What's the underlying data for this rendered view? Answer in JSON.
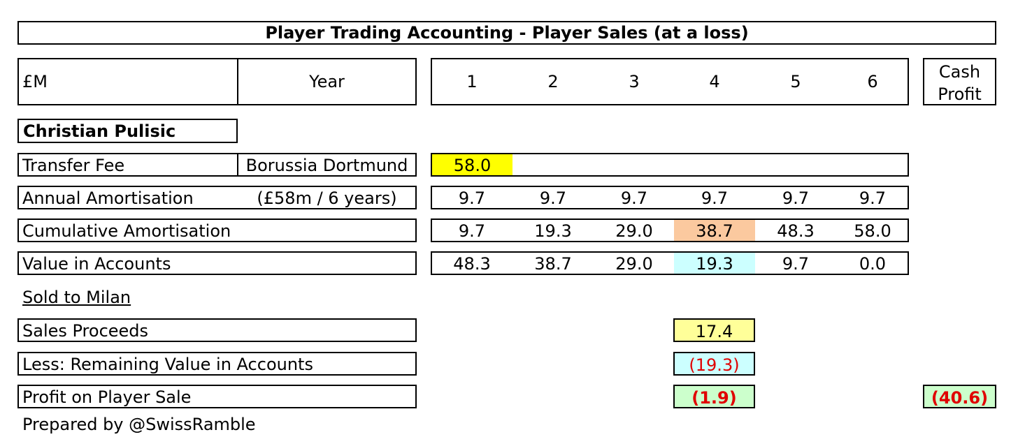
{
  "title": "Player Trading Accounting - Player Sales (at a loss)",
  "header": {
    "unit": "£M",
    "year_label": "Year",
    "years": [
      "1",
      "2",
      "3",
      "4",
      "5",
      "6"
    ],
    "cash_profit_line1": "Cash",
    "cash_profit_line2": "Profit"
  },
  "player": "Christian Pulisic",
  "rows": {
    "transfer_fee": {
      "label": "Transfer Fee",
      "note": "Borussia Dortmund",
      "value": "58.0"
    },
    "annual_amortisation": {
      "label": "Annual Amortisation",
      "note": "(£58m / 6 years)",
      "values": [
        "9.7",
        "9.7",
        "9.7",
        "9.7",
        "9.7",
        "9.7"
      ]
    },
    "cumulative_amortisation": {
      "label": "Cumulative Amortisation",
      "values": [
        "9.7",
        "19.3",
        "29.0",
        "38.7",
        "48.3",
        "58.0"
      ]
    },
    "value_in_accounts": {
      "label": "Value in Accounts",
      "values": [
        "48.3",
        "38.7",
        "29.0",
        "19.3",
        "9.7",
        "0.0"
      ]
    }
  },
  "sale": {
    "heading": "Sold to Milan",
    "sales_proceeds": {
      "label": "Sales Proceeds",
      "value": "17.4"
    },
    "remaining_value": {
      "label": "Less: Remaining Value in Accounts",
      "value": "(19.3)"
    },
    "profit": {
      "label": "Profit on Player Sale",
      "value": "(1.9)",
      "cash_profit": "(40.6)"
    }
  },
  "footer": "Prepared by @SwissRamble",
  "colors": {
    "yellow": "#ffff00",
    "light_yellow": "#ffff99",
    "peach": "#fbc99f",
    "cyan": "#ccffff",
    "green": "#ccffcc",
    "red_text": "#e00000"
  }
}
